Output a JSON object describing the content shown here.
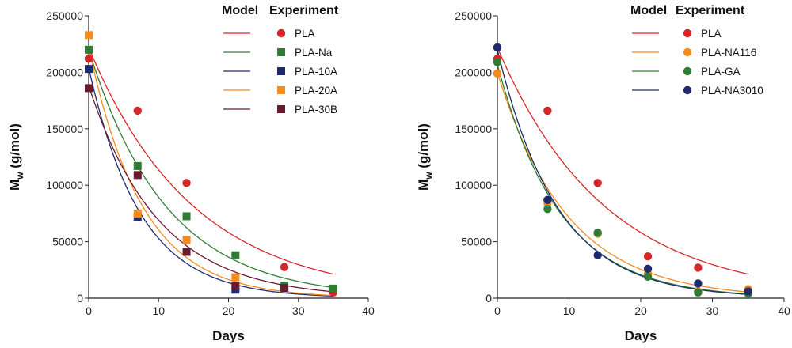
{
  "chart_data": [
    {
      "type": "scatter",
      "xlabel": "Days",
      "ylabel_main": "M",
      "ylabel_sub": "w",
      "ylabel_rest": " (g/mol)",
      "xlim": [
        0,
        40
      ],
      "ylim": [
        0,
        250000
      ],
      "xticks": [
        "0",
        "10",
        "20",
        "30",
        "40"
      ],
      "yticks": [
        "0",
        "50000",
        "100000",
        "150000",
        "200000",
        "250000"
      ],
      "legend": {
        "model_header": "Model",
        "experiment_header": "Experiment",
        "placement": "top-right"
      },
      "series": [
        {
          "name": "PLA",
          "color": "#d62728",
          "marker": "circle",
          "x": [
            0,
            7,
            14,
            28,
            35
          ],
          "y": [
            212000,
            166000,
            102000,
            27500,
            5000
          ],
          "model": {
            "a": 222000,
            "k": 0.067
          }
        },
        {
          "name": "PLA-Na",
          "color": "#2e7d32",
          "marker": "square",
          "x": [
            0,
            7,
            14,
            21,
            28,
            35
          ],
          "y": [
            220000,
            117000,
            72500,
            38000,
            11000,
            8500
          ],
          "model": {
            "a": 220000,
            "k": 0.09
          }
        },
        {
          "name": "PLA-10A",
          "color": "#1f2a6e",
          "marker": "square",
          "x": [
            0,
            7,
            21
          ],
          "y": [
            203000,
            72000,
            7500
          ],
          "model": {
            "a": 204000,
            "k": 0.135
          }
        },
        {
          "name": "PLA-20A",
          "color": "#f58a1f",
          "marker": "square",
          "x": [
            0,
            7,
            14,
            21
          ],
          "y": [
            233000,
            75000,
            51500,
            18500
          ],
          "model": {
            "a": 222000,
            "k": 0.13
          }
        },
        {
          "name": "PLA-30B",
          "color": "#6b1a2e",
          "marker": "square",
          "x": [
            0,
            7,
            14,
            21,
            28
          ],
          "y": [
            186000,
            109000,
            41000,
            11000,
            9000
          ],
          "model": {
            "a": 188000,
            "k": 0.1
          }
        }
      ]
    },
    {
      "type": "scatter",
      "xlabel": "Days",
      "ylabel_main": "M",
      "ylabel_sub": "w",
      "ylabel_rest": " (g/mol)",
      "xlim": [
        0,
        40
      ],
      "ylim": [
        0,
        250000
      ],
      "xticks": [
        "0",
        "10",
        "20",
        "30",
        "40"
      ],
      "yticks": [
        "0",
        "50000",
        "100000",
        "150000",
        "200000",
        "250000"
      ],
      "legend": {
        "model_header": "Model",
        "experiment_header": "Experiment",
        "placement": "top-right"
      },
      "series": [
        {
          "name": "PLA",
          "color": "#d62728",
          "marker": "circle",
          "x": [
            0,
            7,
            14,
            21,
            28,
            35
          ],
          "y": [
            212000,
            166000,
            102000,
            37000,
            27000,
            5000
          ],
          "model": {
            "a": 222000,
            "k": 0.067
          }
        },
        {
          "name": "PLA-NA116",
          "color": "#f58a1f",
          "marker": "circle",
          "x": [
            0,
            7,
            14,
            21,
            28,
            35
          ],
          "y": [
            199000,
            84000,
            57000,
            22000,
            6000,
            8000
          ],
          "model": {
            "a": 200000,
            "k": 0.103
          }
        },
        {
          "name": "PLA-GA",
          "color": "#2e7d32",
          "marker": "circle",
          "x": [
            0,
            7,
            14,
            21,
            28,
            35
          ],
          "y": [
            209000,
            79000,
            58000,
            19000,
            5000,
            4000
          ],
          "model": {
            "a": 207000,
            "k": 0.115
          }
        },
        {
          "name": "PLA-NA3010",
          "color": "#1f2a6e",
          "marker": "circle",
          "x": [
            0,
            7,
            14,
            21,
            28,
            35
          ],
          "y": [
            222000,
            87000,
            38000,
            26000,
            13000,
            6000
          ],
          "model": {
            "a": 220000,
            "k": 0.12
          }
        }
      ]
    }
  ]
}
